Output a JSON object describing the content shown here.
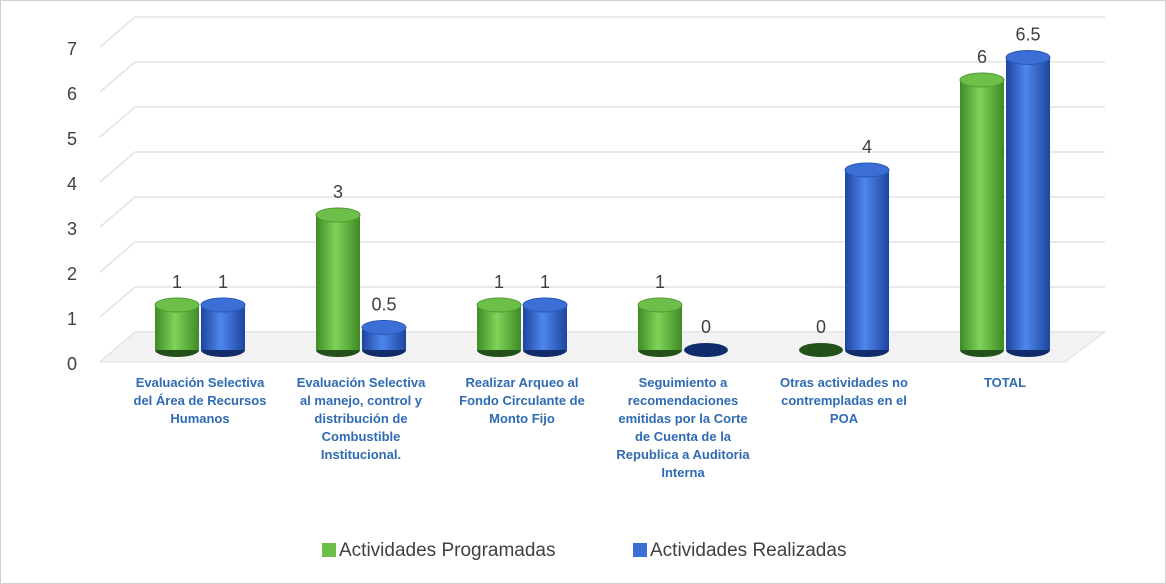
{
  "chart_data": {
    "type": "bar3d",
    "categories": [
      "Evaluación Selectiva del Área de Recursos Humanos",
      "Evaluación Selectiva al manejo, control y distribución de Combustible Institucional.",
      "Realizar Arqueo al Fondo Circulante de Monto Fijo",
      "Seguimiento a recomendaciones emitidas por  la Corte de Cuenta de la Republica a Auditoria Interna",
      "Otras actividades no contrempladas en el POA",
      "TOTAL"
    ],
    "series": [
      {
        "name": "Actividades Programadas",
        "color": "#6cc04a",
        "values": [
          1,
          3,
          1,
          1,
          0,
          6
        ]
      },
      {
        "name": "Actividades Realizadas",
        "color": "#3b6fd6",
        "values": [
          1,
          0.5,
          1,
          0,
          4,
          6.5
        ]
      }
    ],
    "ylim": [
      0,
      7
    ],
    "yticks": [
      0,
      1,
      2,
      3,
      4,
      5,
      6,
      7
    ],
    "grid": true,
    "legend": "bottom"
  }
}
